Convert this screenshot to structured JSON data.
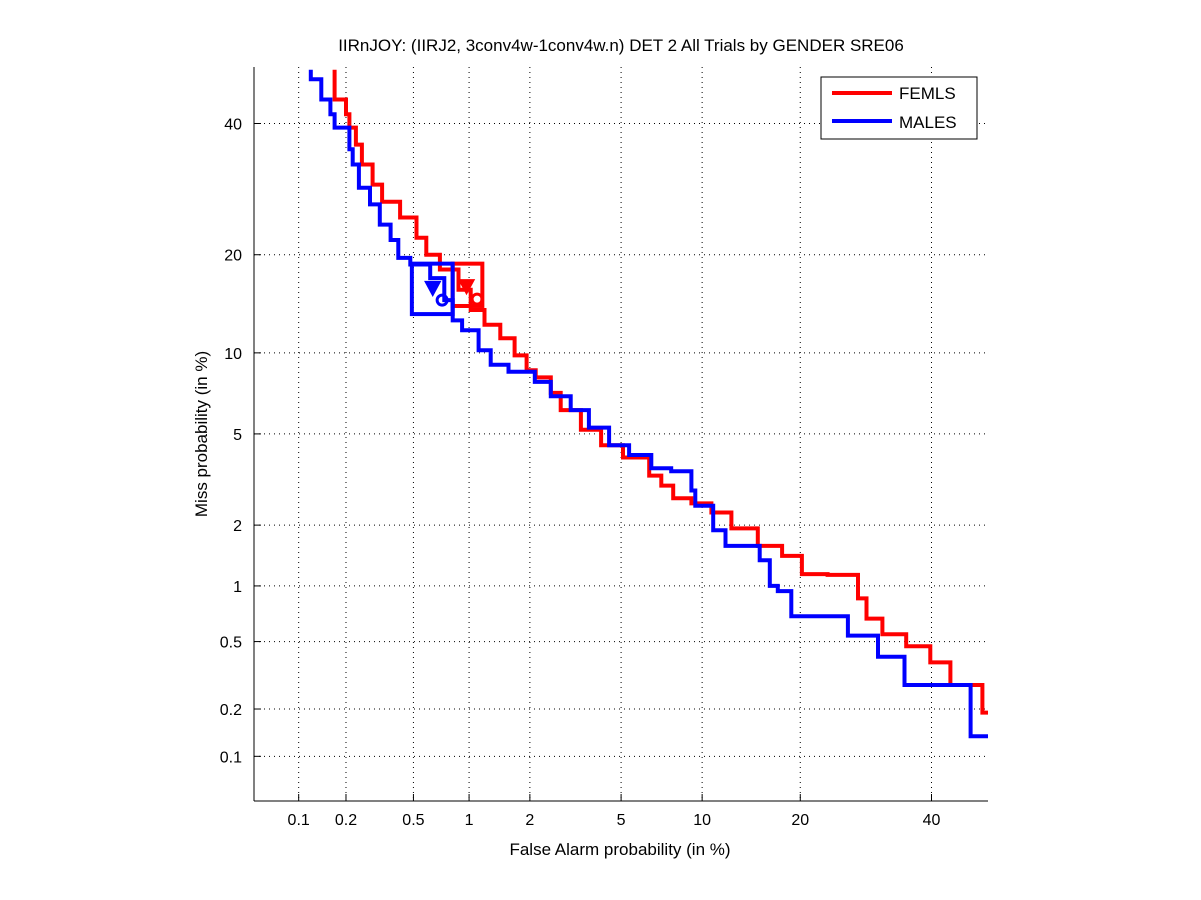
{
  "chart_data": {
    "type": "line",
    "title": "IIRnJOY: (IIRJ2, 3conv4w-1conv4w.n) DET 2 All Trials by GENDER SRE06",
    "xlabel": "False Alarm probability (in %)",
    "ylabel": "Miss probability (in %)",
    "xscale": "probit",
    "yscale": "probit",
    "xlim": [
      0.05,
      50
    ],
    "ylim": [
      0.05,
      50
    ],
    "grid": true,
    "legend_position": "top-right",
    "x_ticks": [
      {
        "value": 0.1,
        "label": "0.1"
      },
      {
        "value": 0.2,
        "label": "0.2"
      },
      {
        "value": 0.5,
        "label": "0.5"
      },
      {
        "value": 1,
        "label": "1"
      },
      {
        "value": 2,
        "label": "2"
      },
      {
        "value": 5,
        "label": "5"
      },
      {
        "value": 10,
        "label": "10"
      },
      {
        "value": 20,
        "label": "20"
      },
      {
        "value": 40,
        "label": "40"
      }
    ],
    "y_ticks": [
      {
        "value": 0.1,
        "label": "0.1"
      },
      {
        "value": 0.2,
        "label": "0.2"
      },
      {
        "value": 0.5,
        "label": "0.5"
      },
      {
        "value": 1,
        "label": "1"
      },
      {
        "value": 2,
        "label": "2"
      },
      {
        "value": 5,
        "label": "5"
      },
      {
        "value": 10,
        "label": "10"
      },
      {
        "value": 20,
        "label": "20"
      },
      {
        "value": 40,
        "label": "40"
      }
    ],
    "series": [
      {
        "name": "FEMLS",
        "color": "#ff0000",
        "points": [
          [
            0.17,
            49.5
          ],
          [
            0.17,
            46.9
          ],
          [
            0.2,
            44.2
          ],
          [
            0.21,
            41.6
          ],
          [
            0.23,
            39.3
          ],
          [
            0.25,
            36.4
          ],
          [
            0.29,
            33.1
          ],
          [
            0.33,
            29.9
          ],
          [
            0.42,
            27.3
          ],
          [
            0.52,
            25.0
          ],
          [
            0.59,
            22.2
          ],
          [
            0.7,
            20.0
          ],
          [
            0.88,
            18.2
          ],
          [
            1.02,
            15.9
          ],
          [
            1.2,
            13.8
          ],
          [
            1.44,
            12.4
          ],
          [
            1.69,
            11.2
          ],
          [
            1.93,
            9.8
          ],
          [
            2.13,
            8.7
          ],
          [
            2.5,
            8.2
          ],
          [
            2.77,
            7.2
          ],
          [
            3.4,
            6.2
          ],
          [
            4.14,
            5.2
          ],
          [
            5.09,
            4.5
          ],
          [
            6.44,
            4.0
          ],
          [
            7.15,
            3.35
          ],
          [
            7.91,
            3.03
          ],
          [
            9.18,
            2.66
          ],
          [
            10.75,
            2.52
          ],
          [
            12.5,
            2.29
          ],
          [
            15.1,
            1.93
          ],
          [
            17.8,
            1.59
          ],
          [
            20.2,
            1.42
          ],
          [
            23.6,
            1.15
          ],
          [
            28.0,
            1.14
          ],
          [
            29.3,
            0.86
          ],
          [
            31.8,
            0.67
          ],
          [
            35.7,
            0.55
          ],
          [
            39.8,
            0.47
          ],
          [
            43.3,
            0.38
          ],
          [
            49.0,
            0.28
          ],
          [
            50.0,
            0.19
          ]
        ],
        "box": {
          "fa": [
            0.82,
            1.17
          ],
          "miss": [
            14.2,
            18.9
          ]
        },
        "triangle_marker": [
          0.97,
          16.3
        ],
        "circle_marker": [
          1.1,
          14.9
        ]
      },
      {
        "name": "MALES",
        "color": "#0000ff",
        "points": [
          [
            0.12,
            49.5
          ],
          [
            0.14,
            47.8
          ],
          [
            0.16,
            44.2
          ],
          [
            0.17,
            41.6
          ],
          [
            0.21,
            39.3
          ],
          [
            0.22,
            35.6
          ],
          [
            0.24,
            33.1
          ],
          [
            0.28,
            29.4
          ],
          [
            0.32,
            26.9
          ],
          [
            0.37,
            24.0
          ],
          [
            0.41,
            21.9
          ],
          [
            0.48,
            19.6
          ],
          [
            0.62,
            18.8
          ],
          [
            0.74,
            17.2
          ],
          [
            0.82,
            14.8
          ],
          [
            0.92,
            12.8
          ],
          [
            1.12,
            11.9
          ],
          [
            1.29,
            10.2
          ],
          [
            1.58,
            9.1
          ],
          [
            2.11,
            8.6
          ],
          [
            2.5,
            7.9
          ],
          [
            3.07,
            7.0
          ],
          [
            3.68,
            6.2
          ],
          [
            4.47,
            5.3
          ],
          [
            5.38,
            4.5
          ],
          [
            6.56,
            4.1
          ],
          [
            7.78,
            3.6
          ],
          [
            9.18,
            3.5
          ],
          [
            9.47,
            2.88
          ],
          [
            10.9,
            2.46
          ],
          [
            11.96,
            1.89
          ],
          [
            13.1,
            1.59
          ],
          [
            15.3,
            1.59
          ],
          [
            16.4,
            1.35
          ],
          [
            17.3,
            1.0
          ],
          [
            18.9,
            0.94
          ],
          [
            21.2,
            0.69
          ],
          [
            26.5,
            0.69
          ],
          [
            27.1,
            0.54
          ],
          [
            31.1,
            0.54
          ],
          [
            31.8,
            0.41
          ],
          [
            35.4,
            0.41
          ],
          [
            35.7,
            0.28
          ],
          [
            46.9,
            0.28
          ],
          [
            47.2,
            0.135
          ],
          [
            50.0,
            0.135
          ]
        ],
        "box": {
          "fa": [
            0.49,
            0.82
          ],
          "miss": [
            13.4,
            18.9
          ]
        },
        "triangle_marker": [
          0.64,
          16.1
        ],
        "circle_marker": [
          0.72,
          14.8
        ]
      }
    ],
    "legend": [
      {
        "label": "FEMLS",
        "color": "#ff0000"
      },
      {
        "label": "MALES",
        "color": "#0000ff"
      }
    ]
  }
}
